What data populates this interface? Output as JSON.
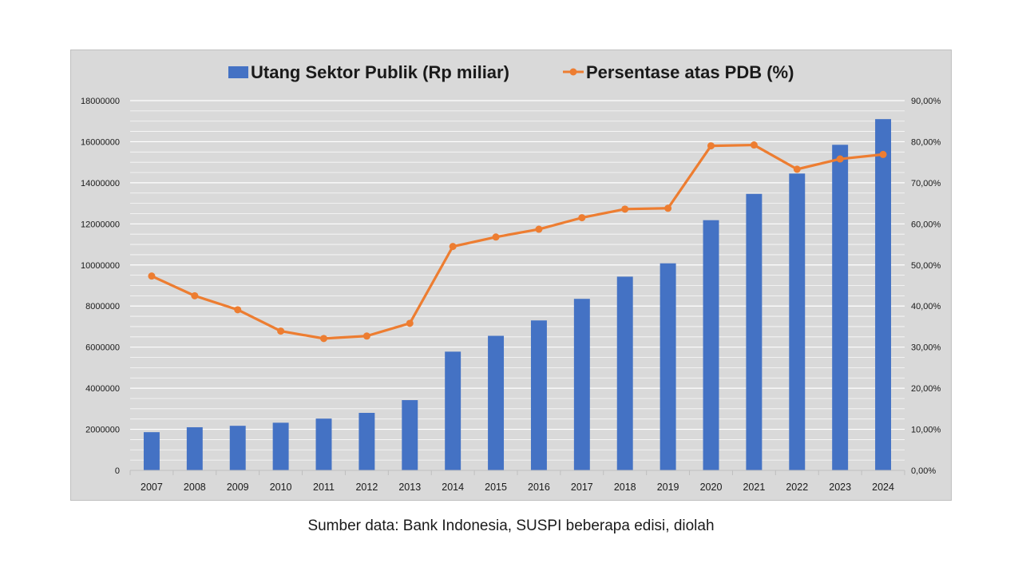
{
  "source_note": "Sumber data: Bank Indonesia, SUSPI beberapa edisi, diolah",
  "chart_data": {
    "type": "bar+line",
    "categories": [
      "2007",
      "2008",
      "2009",
      "2010",
      "2011",
      "2012",
      "2013",
      "2014",
      "2015",
      "2016",
      "2017",
      "2018",
      "2019",
      "2020",
      "2021",
      "2022",
      "2023",
      "2024"
    ],
    "series": [
      {
        "name": "Utang Sektor Publik (Rp miliar)",
        "type": "bar",
        "axis": "left",
        "color": "#4472c4",
        "values": [
          1860000,
          2100000,
          2170000,
          2320000,
          2520000,
          2800000,
          3420000,
          5780000,
          6550000,
          7300000,
          8350000,
          9430000,
          10080000,
          12180000,
          13460000,
          14450000,
          15850000,
          17100000
        ]
      },
      {
        "name": "Persentase atas PDB (%)",
        "type": "line",
        "axis": "right",
        "color": "#ed7d31",
        "values": [
          47.3,
          42.5,
          39.1,
          33.9,
          32.1,
          32.7,
          35.8,
          54.5,
          56.8,
          58.7,
          61.5,
          63.6,
          63.8,
          79.0,
          79.2,
          73.3,
          75.8,
          76.9
        ]
      }
    ],
    "y_left": {
      "lim": [
        0,
        18000000
      ],
      "ticks": [
        "0",
        "2000000",
        "4000000",
        "6000000",
        "8000000",
        "10000000",
        "12000000",
        "14000000",
        "16000000",
        "18000000"
      ]
    },
    "y_right": {
      "lim": [
        0,
        90
      ],
      "ticks": [
        "0,00%",
        "10,00%",
        "20,00%",
        "30,00%",
        "40,00%",
        "50,00%",
        "60,00%",
        "70,00%",
        "80,00%",
        "90,00%"
      ]
    },
    "grid": true,
    "legend": "top-center"
  }
}
